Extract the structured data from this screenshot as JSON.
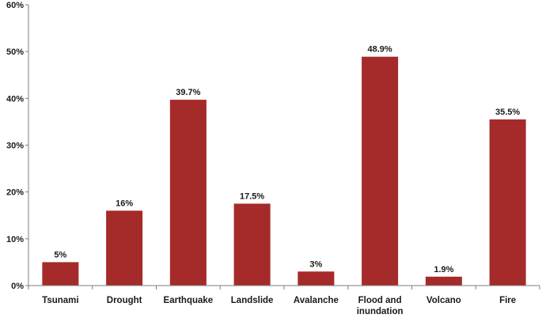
{
  "chart_data": {
    "type": "bar",
    "categories": [
      "Tsunami",
      "Drought",
      "Earthquake",
      "Landslide",
      "Avalanche",
      "Flood and inundation",
      "Volcano",
      "Fire"
    ],
    "category_lines": [
      [
        "Tsunami"
      ],
      [
        "Drought"
      ],
      [
        "Earthquake"
      ],
      [
        "Landslide"
      ],
      [
        "Avalanche"
      ],
      [
        "Flood and",
        "inundation"
      ],
      [
        "Volcano"
      ],
      [
        "Fire"
      ]
    ],
    "values": [
      5,
      16,
      39.7,
      17.5,
      3,
      48.9,
      1.9,
      35.5
    ],
    "data_labels": [
      "5%",
      "16%",
      "39.7%",
      "17.5%",
      "3%",
      "48.9%",
      "1.9%",
      "35.5%"
    ],
    "yticks": [
      0,
      10,
      20,
      30,
      40,
      50,
      60
    ],
    "ytick_labels": [
      "0%",
      "10%",
      "20%",
      "30%",
      "40%",
      "50%",
      "60%"
    ],
    "ylim": [
      0,
      60
    ],
    "title": "",
    "xlabel": "",
    "ylabel": "",
    "grid": false,
    "bar_color": "#a52a2a",
    "axis_color": "#7f7f7f"
  }
}
